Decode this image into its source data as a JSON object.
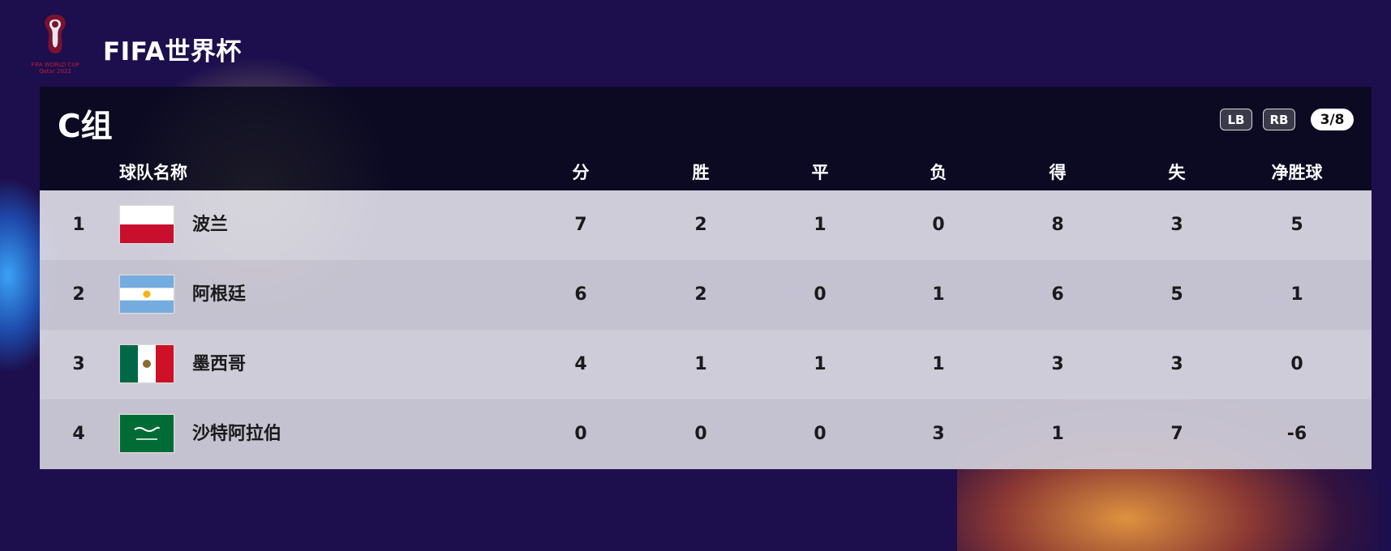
{
  "header": {
    "app_title": "FIFA世界杯",
    "logo_text": "FIFA WORLD CUP Qatar 2022"
  },
  "group": {
    "title": "C组",
    "nav": {
      "prev_label": "LB",
      "next_label": "RB",
      "page": "3/8"
    }
  },
  "columns": {
    "team": "球队名称",
    "points": "分",
    "wins": "胜",
    "draws": "平",
    "losses": "负",
    "goals_for": "得",
    "goals_against": "失",
    "goal_diff": "净胜球"
  },
  "teams": [
    {
      "rank": "1",
      "name": "波兰",
      "flag": "poland-flag",
      "points": "7",
      "wins": "2",
      "draws": "1",
      "losses": "0",
      "goals_for": "8",
      "goals_against": "3",
      "goal_diff": "5"
    },
    {
      "rank": "2",
      "name": "阿根廷",
      "flag": "argentina-flag",
      "points": "6",
      "wins": "2",
      "draws": "0",
      "losses": "1",
      "goals_for": "6",
      "goals_against": "5",
      "goal_diff": "1"
    },
    {
      "rank": "3",
      "name": "墨西哥",
      "flag": "mexico-flag",
      "points": "4",
      "wins": "1",
      "draws": "1",
      "losses": "1",
      "goals_for": "3",
      "goals_against": "3",
      "goal_diff": "0"
    },
    {
      "rank": "4",
      "name": "沙特阿拉伯",
      "flag": "saudi-arabia-flag",
      "points": "0",
      "wins": "0",
      "draws": "0",
      "losses": "3",
      "goals_for": "1",
      "goals_against": "7",
      "goal_diff": "-6"
    }
  ],
  "colors": {
    "background": "#1d0f4d",
    "header_bar": "#0a0a1e",
    "row_light": "#dcdae4",
    "row_dark": "#cdcbd7"
  }
}
